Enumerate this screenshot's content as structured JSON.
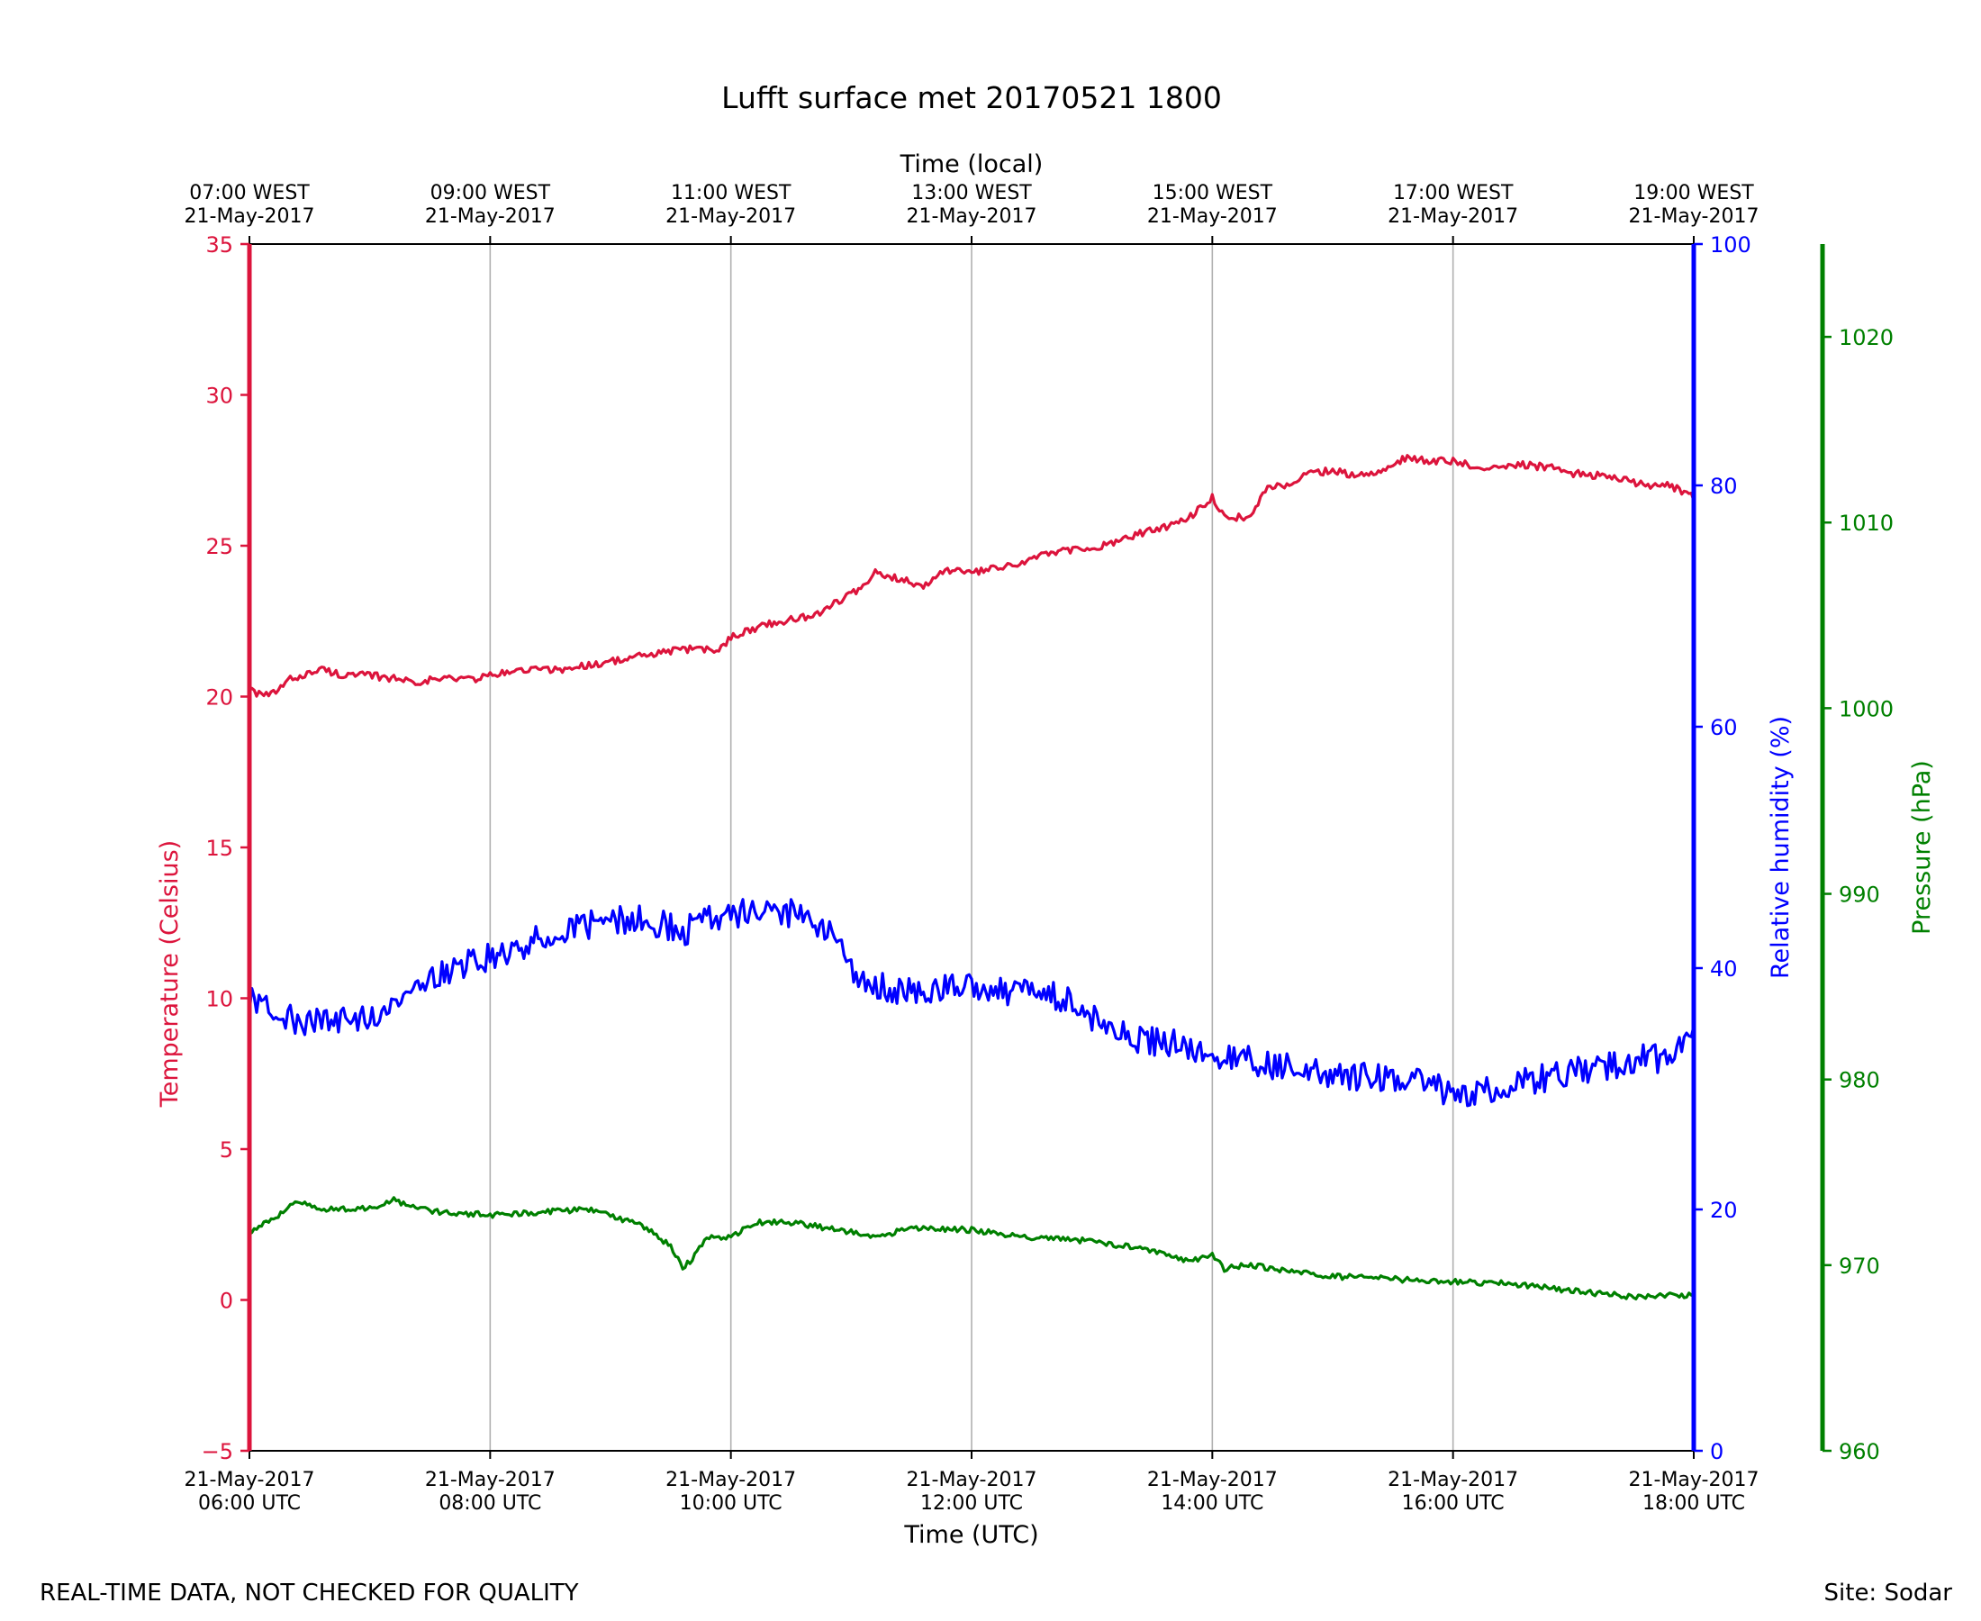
{
  "chart_data": {
    "type": "line",
    "title": "Lufft surface met 20170521 1800",
    "x_top_label": "Time (local)",
    "x_bottom_label": "Time (UTC)",
    "x_range_hours": [
      6,
      18
    ],
    "x_ticks_hours": [
      6,
      8,
      10,
      12,
      14,
      16,
      18
    ],
    "x_bottom_tick_labels": [
      [
        "21-May-2017",
        "06:00 UTC"
      ],
      [
        "21-May-2017",
        "08:00 UTC"
      ],
      [
        "21-May-2017",
        "10:00 UTC"
      ],
      [
        "21-May-2017",
        "12:00 UTC"
      ],
      [
        "21-May-2017",
        "14:00 UTC"
      ],
      [
        "21-May-2017",
        "16:00 UTC"
      ],
      [
        "21-May-2017",
        "18:00 UTC"
      ]
    ],
    "x_top_tick_labels": [
      [
        "07:00 WEST",
        "21-May-2017"
      ],
      [
        "09:00 WEST",
        "21-May-2017"
      ],
      [
        "11:00 WEST",
        "21-May-2017"
      ],
      [
        "13:00 WEST",
        "21-May-2017"
      ],
      [
        "15:00 WEST",
        "21-May-2017"
      ],
      [
        "17:00 WEST",
        "21-May-2017"
      ],
      [
        "19:00 WEST",
        "21-May-2017"
      ]
    ],
    "grid_x": true,
    "axes": {
      "temperature": {
        "label": "Temperature (Celsius)",
        "range": [
          -5,
          35
        ],
        "ticks": [
          -5,
          0,
          5,
          10,
          15,
          20,
          25,
          30,
          35
        ],
        "tick_labels": [
          "−5",
          "0",
          "5",
          "10",
          "15",
          "20",
          "25",
          "30",
          "35"
        ],
        "color": "#dc143c"
      },
      "humidity": {
        "label": "Relative humidity (%)",
        "range": [
          0,
          100
        ],
        "ticks": [
          0,
          20,
          40,
          60,
          80,
          100
        ],
        "tick_labels": [
          "0",
          "20",
          "40",
          "60",
          "80",
          "100"
        ],
        "color": "#0000ff"
      },
      "pressure": {
        "label": "Pressure (hPa)",
        "range": [
          960,
          1025
        ],
        "ticks": [
          960,
          970,
          980,
          990,
          1000,
          1010,
          1020
        ],
        "tick_labels": [
          "960",
          "970",
          "980",
          "990",
          "1000",
          "1010",
          "1020"
        ],
        "color": "#008000"
      }
    },
    "series": [
      {
        "name": "Temperature",
        "axis": "temperature",
        "color": "#dc143c",
        "noise": 0.12,
        "x": [
          6.0,
          6.1,
          6.2,
          6.35,
          6.6,
          6.8,
          7.0,
          7.2,
          7.4,
          7.6,
          7.9,
          8.0,
          8.3,
          8.6,
          8.9,
          9.2,
          9.5,
          9.7,
          9.9,
          10.0,
          10.3,
          10.7,
          10.9,
          11.1,
          11.2,
          11.4,
          11.6,
          11.8,
          12.0,
          12.3,
          12.6,
          12.9,
          13.1,
          13.4,
          13.6,
          13.8,
          14.0,
          14.1,
          14.3,
          14.45,
          14.6,
          14.8,
          15.0,
          15.2,
          15.4,
          15.5,
          15.6,
          15.8,
          16.0,
          16.2,
          16.5,
          16.8,
          17.0,
          17.3,
          17.6,
          17.8,
          18.0
        ],
        "values": [
          20.3,
          20.0,
          20.1,
          20.6,
          20.9,
          20.7,
          20.7,
          20.6,
          20.5,
          20.6,
          20.6,
          20.7,
          20.9,
          20.9,
          21.1,
          21.3,
          21.5,
          21.6,
          21.5,
          22.0,
          22.4,
          22.7,
          23.2,
          23.6,
          24.1,
          23.9,
          23.7,
          24.2,
          24.1,
          24.3,
          24.7,
          24.9,
          25.0,
          25.4,
          25.6,
          25.9,
          26.6,
          26.0,
          25.9,
          26.9,
          27.0,
          27.4,
          27.5,
          27.3,
          27.5,
          27.7,
          27.9,
          27.8,
          27.8,
          27.6,
          27.7,
          27.6,
          27.4,
          27.3,
          27.0,
          27.0,
          26.6
        ]
      },
      {
        "name": "Relative humidity",
        "axis": "humidity",
        "color": "#0000ff",
        "noise": 1.2,
        "x": [
          6.0,
          6.2,
          6.4,
          6.6,
          6.8,
          7.0,
          7.2,
          7.5,
          7.8,
          8.0,
          8.2,
          8.5,
          8.8,
          9.0,
          9.3,
          9.6,
          9.8,
          10.0,
          10.2,
          10.5,
          10.8,
          11.0,
          11.2,
          11.5,
          11.8,
          12.0,
          12.2,
          12.5,
          12.8,
          13.0,
          13.2,
          13.5,
          13.8,
          14.0,
          14.2,
          14.5,
          14.8,
          15.0,
          15.3,
          15.6,
          15.8,
          15.95,
          16.0,
          16.3,
          16.6,
          16.8,
          17.0,
          17.3,
          17.6,
          17.8,
          18.0
        ],
        "values": [
          37.5,
          36.5,
          35.5,
          36.0,
          35.5,
          36.0,
          37.5,
          39.0,
          40.5,
          41.0,
          41.5,
          43.0,
          43.5,
          44.0,
          44.0,
          43.0,
          44.0,
          44.5,
          44.5,
          44.5,
          43.5,
          40.0,
          38.5,
          38.0,
          38.5,
          38.5,
          38.0,
          38.0,
          37.5,
          36.0,
          34.5,
          34.0,
          33.5,
          33.0,
          32.5,
          32.0,
          31.5,
          31.0,
          31.0,
          30.5,
          30.5,
          29.5,
          29.5,
          30.0,
          30.5,
          31.0,
          31.5,
          32.0,
          32.5,
          32.5,
          34.0
        ]
      },
      {
        "name": "Pressure",
        "axis": "pressure",
        "color": "#008000",
        "noise": 0.15,
        "x": [
          6.0,
          6.2,
          6.4,
          6.6,
          7.0,
          7.2,
          7.5,
          8.0,
          8.5,
          8.9,
          9.0,
          9.3,
          9.5,
          9.6,
          9.7,
          9.8,
          10.0,
          10.2,
          10.5,
          11.0,
          11.2,
          11.5,
          12.0,
          12.5,
          13.0,
          13.5,
          13.8,
          14.0,
          14.1,
          14.3,
          15.0,
          16.0,
          16.5,
          17.0,
          17.5,
          18.0
        ],
        "values": [
          971.8,
          972.5,
          973.4,
          973.0,
          973.1,
          973.5,
          972.9,
          972.7,
          972.9,
          973.0,
          972.7,
          972.0,
          971.0,
          969.8,
          970.5,
          971.5,
          971.5,
          972.3,
          972.3,
          971.8,
          971.5,
          972.0,
          971.9,
          971.5,
          971.3,
          970.8,
          970.2,
          970.5,
          969.8,
          970.0,
          969.4,
          969.1,
          969.0,
          968.6,
          968.3,
          968.4
        ]
      }
    ],
    "footer_left": "REAL-TIME DATA, NOT CHECKED FOR QUALITY",
    "footer_right": "Site: Sodar"
  }
}
